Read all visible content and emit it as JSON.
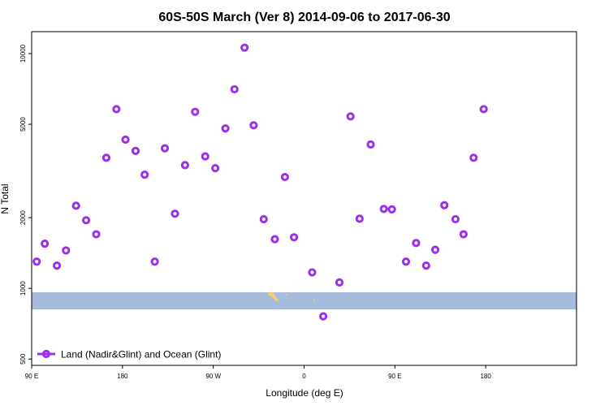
{
  "chart_data": {
    "type": "scatter",
    "title": "60S-50S March (Ver 8)   2014-09-06 to 2017-06-30",
    "xlabel": "Longitude (deg E)",
    "ylabel": "N Total",
    "xlim": [
      -90,
      180
    ],
    "ylim": [
      470,
      12400
    ],
    "y_scale": "log",
    "x_ticks": [
      {
        "value": -90,
        "label": "90 E"
      },
      {
        "value": -45,
        "label": "180"
      },
      {
        "value": 0,
        "label": "90 W"
      },
      {
        "value": 45,
        "label": "0"
      },
      {
        "value": 90,
        "label": "90 E"
      },
      {
        "value": 135,
        "label": "180"
      }
    ],
    "y_ticks": [
      {
        "value": 500,
        "label": "500"
      },
      {
        "value": 1000,
        "label": "1000"
      },
      {
        "value": 2000,
        "label": "2000"
      },
      {
        "value": 5000,
        "label": "5000"
      },
      {
        "value": 10000,
        "label": "10000"
      }
    ],
    "grid": false,
    "legend_position": "bottom-left",
    "series": [
      {
        "name": "Land (Nadir&Glint) and Ocean (Glint)",
        "color": "#9b30e8",
        "marker": "ring",
        "points": [
          {
            "x": -87.5,
            "y": 1300
          },
          {
            "x": -83.5,
            "y": 1550
          },
          {
            "x": -77.5,
            "y": 1250
          },
          {
            "x": -73.0,
            "y": 1450
          },
          {
            "x": -68.0,
            "y": 2250
          },
          {
            "x": -63.0,
            "y": 1950
          },
          {
            "x": -58.0,
            "y": 1700
          },
          {
            "x": -53.0,
            "y": 3600
          },
          {
            "x": -48.0,
            "y": 5800
          },
          {
            "x": -43.5,
            "y": 4300
          },
          {
            "x": -38.5,
            "y": 3850
          },
          {
            "x": -34.0,
            "y": 3050
          },
          {
            "x": -29.0,
            "y": 1300
          },
          {
            "x": -24.0,
            "y": 3950
          },
          {
            "x": -19.0,
            "y": 2080
          },
          {
            "x": -14.0,
            "y": 3350
          },
          {
            "x": -9.0,
            "y": 5650
          },
          {
            "x": -4.0,
            "y": 3650
          },
          {
            "x": 1.0,
            "y": 3250
          },
          {
            "x": 6.0,
            "y": 4800
          },
          {
            "x": 10.5,
            "y": 7050
          },
          {
            "x": 15.5,
            "y": 10600
          },
          {
            "x": 20.0,
            "y": 4950
          },
          {
            "x": 25.0,
            "y": 1970
          },
          {
            "x": 30.5,
            "y": 1620
          },
          {
            "x": 35.5,
            "y": 2980
          },
          {
            "x": 40.0,
            "y": 1650
          },
          {
            "x": 49.0,
            "y": 1170
          },
          {
            "x": 54.5,
            "y": 760
          },
          {
            "x": 62.5,
            "y": 1060
          },
          {
            "x": 68.0,
            "y": 5400
          },
          {
            "x": 72.5,
            "y": 1980
          },
          {
            "x": 78.0,
            "y": 4100
          },
          {
            "x": 84.5,
            "y": 2180
          },
          {
            "x": 88.5,
            "y": 2170
          },
          {
            "x": 95.5,
            "y": 1300
          },
          {
            "x": 100.5,
            "y": 1560
          },
          {
            "x": 105.5,
            "y": 1250
          },
          {
            "x": 110.0,
            "y": 1460
          },
          {
            "x": 114.5,
            "y": 2260
          },
          {
            "x": 120.0,
            "y": 1970
          },
          {
            "x": 124.0,
            "y": 1700
          },
          {
            "x": 129.0,
            "y": 3600
          },
          {
            "x": 134.0,
            "y": 5800
          }
        ]
      }
    ],
    "map_strip": {
      "band_color": "#a7bcdc",
      "land_color": "#f3cf6b"
    }
  }
}
